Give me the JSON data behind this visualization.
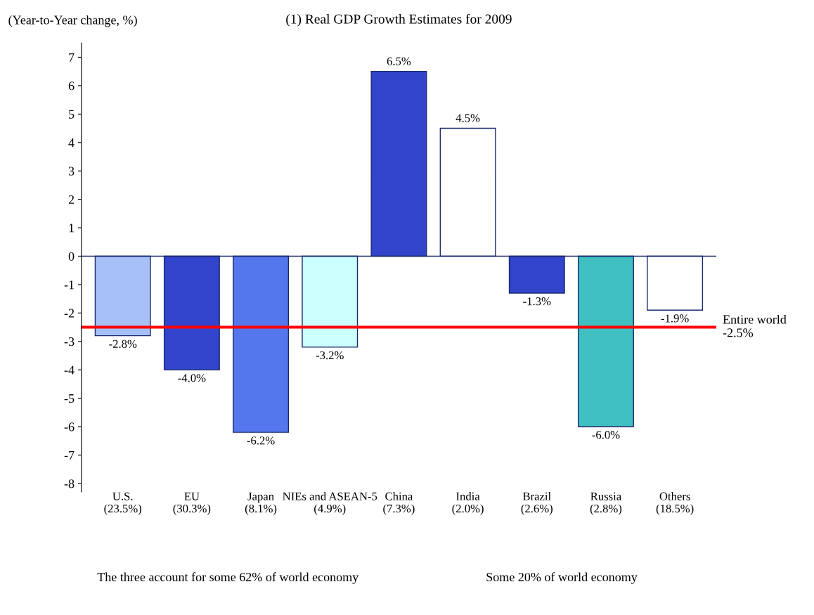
{
  "chart_data": {
    "type": "bar",
    "title": "(1) Real GDP Growth Estimates for 2009",
    "ylabel": "(Year-to-Year change, %)",
    "categories": [
      "U.S.\n(23.5%)",
      "EU\n(30.3%)",
      "Japan\n(8.1%)",
      "NIEs and ASEAN-5\n(4.9%)",
      "China\n(7.3%)",
      "India\n(2.0%)",
      "Brazil\n(2.6%)",
      "Russia\n(2.8%)",
      "Others\n(18.5%)"
    ],
    "values": [
      -2.8,
      -4.0,
      -6.2,
      -3.2,
      6.5,
      4.5,
      -1.3,
      -6.0,
      -1.9
    ],
    "value_labels": [
      "-2.8%",
      "-4.0%",
      "-6.2%",
      "-3.2%",
      "6.5%",
      "4.5%",
      "-1.3%",
      "-6.0%",
      "-1.9%"
    ],
    "colors": [
      "#a8c0f8",
      "#3344cc",
      "#5577ee",
      "#ccffff",
      "#3344cc",
      "#ffffff",
      "#3344cc",
      "#40c0c0",
      "#ffffff"
    ],
    "ylim": [
      -8.3,
      7.5
    ],
    "yticks": [
      -8,
      -7,
      -6,
      -5,
      -4,
      -3,
      -2,
      -1,
      0,
      1,
      2,
      3,
      4,
      5,
      6,
      7
    ],
    "ref_lines": [
      {
        "axis": "y",
        "value": 0,
        "color": "#1a2a6c"
      },
      {
        "axis": "y",
        "value": -2.5,
        "label": "Entire world\n-2.5%",
        "color": "#ff0000"
      }
    ],
    "annotations": [
      "The three account for some 62% of world economy",
      "Some 20% of world economy"
    ],
    "grid": false,
    "legend": false
  }
}
